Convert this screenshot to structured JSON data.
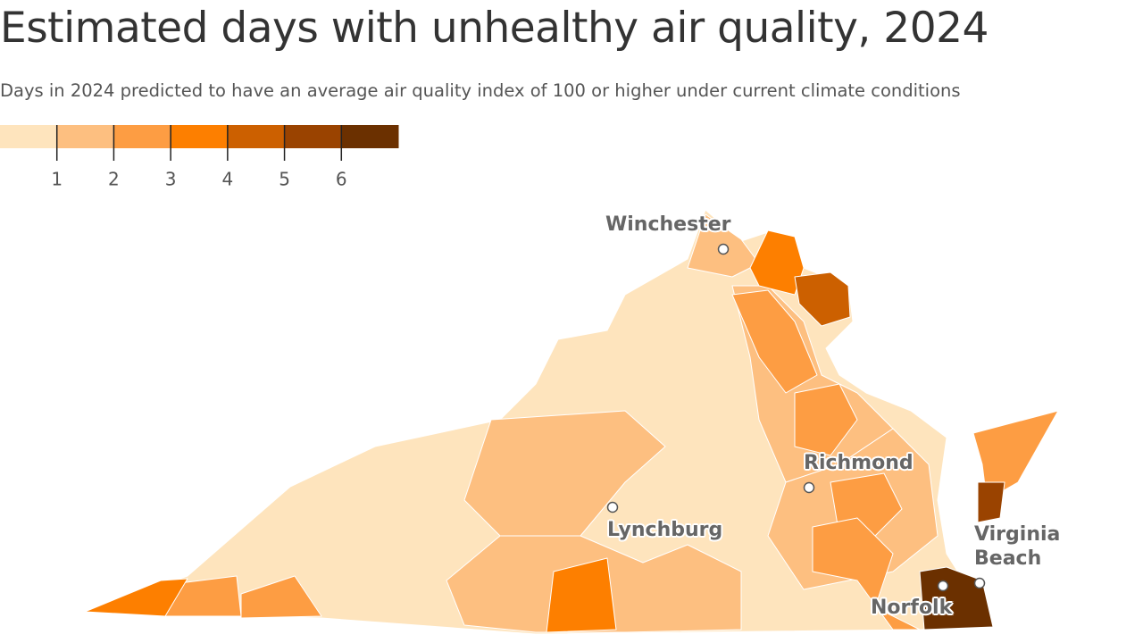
{
  "header": {
    "title": "Estimated days with unhealthy air quality, 2024",
    "subtitle": "Days in 2024 predicted to have an average air quality index of 100 or higher under current climate conditions"
  },
  "legend": {
    "ticks": [
      1,
      2,
      3,
      4,
      5,
      6
    ],
    "colors": [
      "#fee4bd",
      "#fdbf80",
      "#fd9d43",
      "#fd7f00",
      "#cc6000",
      "#9a4300",
      "#6b3000"
    ]
  },
  "cities": [
    {
      "label": "Winchester"
    },
    {
      "label": "Richmond"
    },
    {
      "label": "Lynchburg"
    },
    {
      "label": "Virginia Beach"
    },
    {
      "label": "Norfolk"
    }
  ]
}
